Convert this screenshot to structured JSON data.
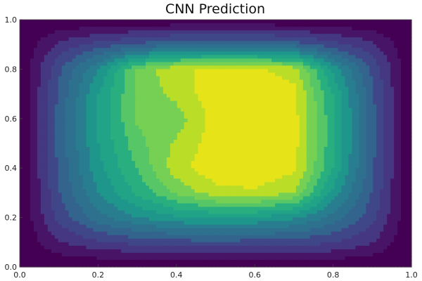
{
  "chart_data": {
    "type": "heatmap",
    "subtype": "filled-contour",
    "title": "CNN Prediction",
    "xlabel": "",
    "ylabel": "",
    "xlim": [
      0.0,
      1.0
    ],
    "ylim": [
      0.0,
      1.0
    ],
    "xticks": [
      "0.0",
      "0.2",
      "0.4",
      "0.6",
      "0.8",
      "1.0"
    ],
    "yticks": [
      "0.0",
      "0.2",
      "0.4",
      "0.6",
      "0.8",
      "1.0"
    ],
    "grid": false,
    "colormap": "viridis",
    "levels": 14,
    "colors": [
      "#440154",
      "#481467",
      "#482576",
      "#453781",
      "#3f4788",
      "#39558c",
      "#32648e",
      "#2d718e",
      "#287d8e",
      "#238a8d",
      "#1f968b",
      "#20a386",
      "#29af7f",
      "#3dbc74",
      "#56c667",
      "#75d054",
      "#95d840",
      "#bade28",
      "#e6e419"
    ],
    "values": [
      [
        0.0,
        0.0,
        0.0,
        0.0,
        0.0,
        0.0,
        0.0,
        0.0,
        0.0,
        0.0,
        0.0
      ],
      [
        0.0,
        0.14,
        0.2,
        0.24,
        0.26,
        0.27,
        0.26,
        0.25,
        0.22,
        0.15,
        0.0
      ],
      [
        0.0,
        0.24,
        0.4,
        0.5,
        0.56,
        0.58,
        0.57,
        0.52,
        0.4,
        0.24,
        0.0
      ],
      [
        0.0,
        0.28,
        0.5,
        0.66,
        0.8,
        0.9,
        0.92,
        0.86,
        0.55,
        0.28,
        0.0
      ],
      [
        0.0,
        0.3,
        0.55,
        0.72,
        0.9,
        0.98,
        0.98,
        0.95,
        0.64,
        0.3,
        0.0
      ],
      [
        0.0,
        0.31,
        0.57,
        0.76,
        0.87,
        0.97,
        0.99,
        0.96,
        0.66,
        0.31,
        0.0
      ],
      [
        0.0,
        0.31,
        0.58,
        0.8,
        0.82,
        0.96,
        0.99,
        0.96,
        0.66,
        0.31,
        0.0
      ],
      [
        0.0,
        0.3,
        0.57,
        0.8,
        0.88,
        0.98,
        0.99,
        0.95,
        0.64,
        0.3,
        0.0
      ],
      [
        0.0,
        0.27,
        0.5,
        0.8,
        0.92,
        0.94,
        0.94,
        0.9,
        0.55,
        0.27,
        0.0
      ],
      [
        0.0,
        0.16,
        0.24,
        0.3,
        0.34,
        0.36,
        0.35,
        0.32,
        0.24,
        0.16,
        0.0
      ],
      [
        0.0,
        0.0,
        0.0,
        0.0,
        0.0,
        0.0,
        0.0,
        0.0,
        0.0,
        0.0,
        0.0
      ]
    ]
  }
}
